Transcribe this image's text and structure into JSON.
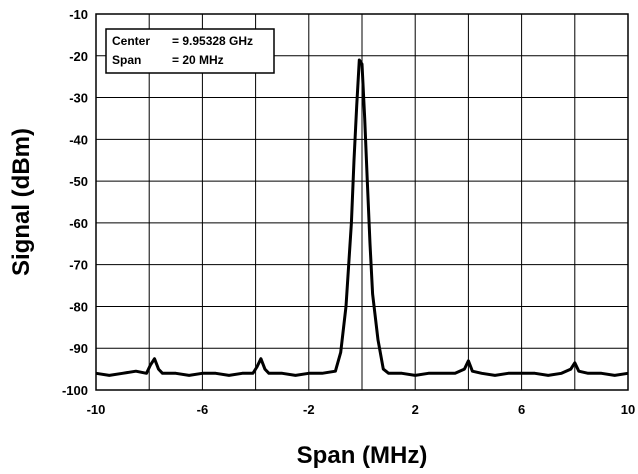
{
  "chart_data": {
    "type": "line",
    "xlabel": "Span (MHz)",
    "ylabel": "Signal (dBm)",
    "xlim": [
      -10,
      10
    ],
    "ylim": [
      -100,
      -10
    ],
    "xticks": [
      -10,
      -6,
      -2,
      2,
      6,
      10
    ],
    "yticks": [
      -10,
      -20,
      -30,
      -40,
      -50,
      -60,
      -70,
      -80,
      -90,
      -100
    ],
    "grid": true,
    "annotation": {
      "lines": [
        {
          "label": "Center",
          "value": "= 9.95328 GHz"
        },
        {
          "label": "Span",
          "value": "= 20 MHz"
        }
      ]
    },
    "series": [
      {
        "x": [
          -10,
          -9.5,
          -9,
          -8.5,
          -8.1,
          -7.95,
          -7.8,
          -7.65,
          -7.5,
          -7,
          -6.5,
          -6,
          -5.5,
          -5,
          -4.5,
          -4.1,
          -3.95,
          -3.8,
          -3.65,
          -3.5,
          -3,
          -2.5,
          -2,
          -1.5,
          -1,
          -0.8,
          -0.6,
          -0.4,
          -0.3,
          -0.2,
          -0.1,
          0,
          0.1,
          0.2,
          0.3,
          0.4,
          0.6,
          0.8,
          1,
          1.5,
          2,
          2.5,
          3,
          3.5,
          3.85,
          4,
          4.15,
          4.5,
          5,
          5.5,
          6,
          6.5,
          7,
          7.5,
          7.85,
          8,
          8.15,
          8.5,
          9,
          9.5,
          10
        ],
        "values": [
          -96,
          -96.5,
          -96,
          -95.5,
          -96,
          -94,
          -92.5,
          -95,
          -96,
          -96,
          -96.5,
          -96,
          -96,
          -96.5,
          -96,
          -96,
          -94.5,
          -92.5,
          -95,
          -96,
          -96,
          -96.5,
          -96,
          -96,
          -95.5,
          -91,
          -80,
          -60,
          -45,
          -32,
          -21,
          -22,
          -35,
          -50,
          -65,
          -77,
          -88,
          -95,
          -96,
          -96,
          -96.5,
          -96,
          -96,
          -96,
          -95,
          -93,
          -95.5,
          -96,
          -96.5,
          -96,
          -96,
          -96,
          -96.5,
          -96,
          -95,
          -93.5,
          -95.5,
          -96,
          -96,
          -96.5,
          -96
        ]
      }
    ]
  },
  "colors": {
    "line": "#000000",
    "grid": "#000000",
    "background": "#ffffff"
  }
}
